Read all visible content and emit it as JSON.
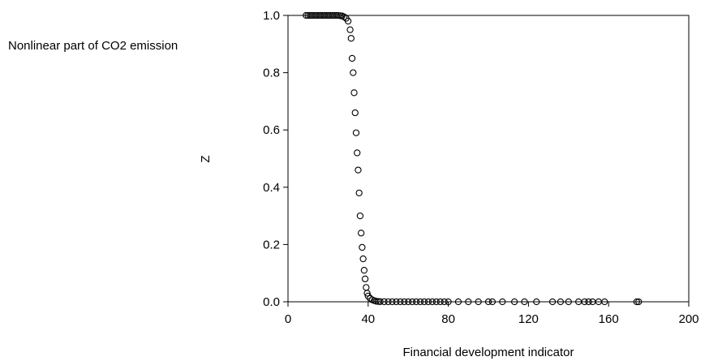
{
  "chart_data": {
    "type": "scatter",
    "title": "",
    "series_label": "Nonlinear part of CO2 emission",
    "xlabel": "Financial development indicator",
    "ylabel": "Z",
    "xlim": [
      0,
      200
    ],
    "ylim": [
      0,
      1.0
    ],
    "xticks": [
      0,
      40,
      80,
      120,
      160,
      200
    ],
    "yticks": [
      0.0,
      0.2,
      0.4,
      0.6,
      0.8,
      1.0
    ],
    "xtick_labels": [
      "0",
      "40",
      "80",
      "120",
      "160",
      "200"
    ],
    "ytick_labels": [
      "0.0",
      "0.2",
      "0.4",
      "0.6",
      "0.8",
      "1.0"
    ],
    "grid": false,
    "marker": "open-circle",
    "marker_color": "#000000",
    "x": [
      9,
      10,
      11,
      12,
      13,
      14,
      15,
      16,
      17,
      18,
      19,
      20,
      21,
      22,
      23,
      24,
      25,
      26,
      27,
      28,
      29,
      30,
      31,
      31.5,
      32,
      32.5,
      33,
      33.5,
      34,
      34.5,
      35,
      35.5,
      36,
      36.5,
      37,
      37.5,
      38,
      38.5,
      39,
      39.5,
      40,
      41,
      42,
      43,
      44,
      45,
      46,
      48,
      50,
      52,
      54,
      56,
      58,
      60,
      62,
      64,
      66,
      68,
      70,
      72,
      74,
      76,
      78,
      80,
      85,
      90,
      95,
      100,
      102,
      107,
      113,
      118,
      124,
      132,
      136,
      140,
      145,
      148,
      150,
      152,
      155,
      158,
      174,
      175
    ],
    "y": [
      1.0,
      1.0,
      1.0,
      1.0,
      1.0,
      1.0,
      1.0,
      1.0,
      1.0,
      1.0,
      1.0,
      1.0,
      1.0,
      1.0,
      1.0,
      1.0,
      1.0,
      0.999,
      0.998,
      0.995,
      0.99,
      0.98,
      0.95,
      0.92,
      0.85,
      0.8,
      0.73,
      0.66,
      0.59,
      0.52,
      0.46,
      0.38,
      0.3,
      0.24,
      0.19,
      0.15,
      0.11,
      0.08,
      0.05,
      0.03,
      0.02,
      0.012,
      0.007,
      0.004,
      0.002,
      0.001,
      0.0005,
      0.0002,
      0.0001,
      0,
      0,
      0,
      0,
      0,
      0,
      0,
      0,
      0,
      0,
      0,
      0,
      0,
      0,
      0,
      0,
      0,
      0,
      0,
      0,
      0,
      0,
      0,
      0,
      0,
      0,
      0,
      0,
      0,
      0,
      0,
      0,
      0,
      0,
      0
    ]
  }
}
